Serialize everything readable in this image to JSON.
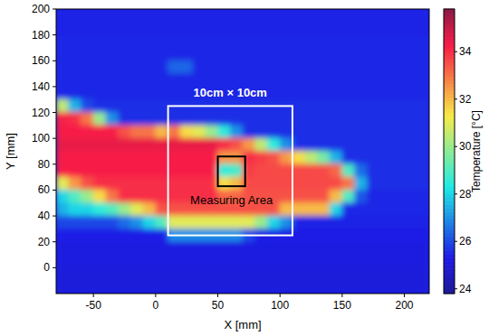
{
  "chart_data": {
    "type": "heatmap",
    "x_label": "X [mm]",
    "y_label": "Y [mm]",
    "colorbar_label": "Temperature [°C]",
    "xlim": [
      -80,
      220
    ],
    "ylim": [
      -20,
      200
    ],
    "xticks": [
      -50,
      0,
      50,
      100,
      150,
      200
    ],
    "yticks": [
      0,
      20,
      40,
      60,
      80,
      100,
      120,
      140,
      160,
      180,
      200
    ],
    "color_range": [
      23.8,
      35.8
    ],
    "color_ticks": [
      24,
      26,
      28,
      30,
      32,
      34
    ],
    "x": [
      -75,
      -65,
      -55,
      -45,
      -35,
      -25,
      -15,
      -5,
      5,
      15,
      25,
      35,
      45,
      55,
      65,
      75,
      85,
      95,
      105,
      115,
      125,
      135,
      145,
      155,
      165,
      175,
      185,
      195,
      205,
      215
    ],
    "y": [
      195,
      185,
      175,
      165,
      155,
      145,
      135,
      125,
      115,
      105,
      95,
      85,
      75,
      65,
      55,
      45,
      35,
      25,
      15,
      5,
      -5,
      -15
    ],
    "cells": [
      [
        25.4,
        25.4,
        25.4,
        25.4,
        25.4,
        25.4,
        25.4,
        25.4,
        25.4,
        25.4,
        25.4,
        25.4,
        25.4,
        25.4,
        25.4,
        25.4,
        25.4,
        25.4,
        25.4,
        25.4,
        25.4,
        25.4,
        25.4,
        25.4,
        25.4,
        25.4,
        25.4,
        25.4,
        25.4,
        25.4
      ],
      [
        25.4,
        25.4,
        25.4,
        25.4,
        25.4,
        25.4,
        25.4,
        25.4,
        25.4,
        25.4,
        25.4,
        25.4,
        25.4,
        25.4,
        25.4,
        25.4,
        25.4,
        25.4,
        25.4,
        25.4,
        25.4,
        25.4,
        25.4,
        25.4,
        25.4,
        25.4,
        25.4,
        25.4,
        25.4,
        25.4
      ],
      [
        25.5,
        25.5,
        25.5,
        25.5,
        25.5,
        25.5,
        25.5,
        25.5,
        25.5,
        25.5,
        25.5,
        25.5,
        25.5,
        25.5,
        25.5,
        25.5,
        25.5,
        25.5,
        25.5,
        25.5,
        25.5,
        25.5,
        25.5,
        25.5,
        25.5,
        25.5,
        25.5,
        25.5,
        25.5,
        25.5
      ],
      [
        25.5,
        25.5,
        25.5,
        25.5,
        25.5,
        25.5,
        25.5,
        25.5,
        25.5,
        25.5,
        25.5,
        25.5,
        25.5,
        25.5,
        25.5,
        25.5,
        25.5,
        25.5,
        25.5,
        25.5,
        25.5,
        25.5,
        25.5,
        25.5,
        25.5,
        25.5,
        25.5,
        25.5,
        25.5,
        25.5
      ],
      [
        25.5,
        25.5,
        25.5,
        25.5,
        25.5,
        25.5,
        25.5,
        25.5,
        25.5,
        26.4,
        26.4,
        25.5,
        25.5,
        25.5,
        25.5,
        25.5,
        25.5,
        25.5,
        25.5,
        25.5,
        25.5,
        25.5,
        25.5,
        25.5,
        25.5,
        25.5,
        25.5,
        25.5,
        25.5,
        25.5
      ],
      [
        25.5,
        25.5,
        25.5,
        25.5,
        25.5,
        25.5,
        25.5,
        25.5,
        25.5,
        25.5,
        25.5,
        25.5,
        25.5,
        25.5,
        25.5,
        25.5,
        25.5,
        25.5,
        25.5,
        25.5,
        25.5,
        25.5,
        25.5,
        25.5,
        25.5,
        25.5,
        25.5,
        25.5,
        25.5,
        25.5
      ],
      [
        25.5,
        25.5,
        25.5,
        25.5,
        25.5,
        25.5,
        25.5,
        25.5,
        25.5,
        25.5,
        25.5,
        25.5,
        25.5,
        25.5,
        25.5,
        25.5,
        25.5,
        25.5,
        25.5,
        25.5,
        25.5,
        25.5,
        25.5,
        25.5,
        25.5,
        25.5,
        25.5,
        25.5,
        25.5,
        25.5
      ],
      [
        30.5,
        27.5,
        26,
        25.6,
        25.6,
        25.6,
        25.6,
        25.6,
        25.6,
        25.6,
        25.6,
        25.6,
        25.6,
        25.6,
        25.6,
        25.6,
        25.6,
        25.6,
        25.6,
        25.6,
        25.6,
        25.6,
        25.6,
        25.6,
        25.6,
        25.6,
        25.6,
        25.6,
        25.6,
        25.6
      ],
      [
        34.2,
        34,
        33,
        30,
        27,
        25.6,
        25.6,
        25.6,
        25.6,
        25.6,
        25.6,
        25.6,
        25.6,
        25.6,
        25.6,
        25.6,
        25.6,
        25.6,
        25.6,
        25.6,
        25.6,
        25.6,
        25.6,
        25.6,
        25.6,
        25.6,
        25.6,
        25.6,
        25.6,
        25.6
      ],
      [
        34.3,
        34.3,
        34.3,
        34.3,
        34.3,
        33.5,
        33,
        33,
        32,
        33,
        31.5,
        31,
        30,
        28.5,
        27,
        25.6,
        25.6,
        25.6,
        25.6,
        25.6,
        25.6,
        25.6,
        25.6,
        25.6,
        25.6,
        25.6,
        25.6,
        25.6,
        25.6,
        25.6
      ],
      [
        34.5,
        34.5,
        34.5,
        34.5,
        34.5,
        34.5,
        34.5,
        34.5,
        34.5,
        34.5,
        34.5,
        34.5,
        34.5,
        34,
        33.5,
        32.5,
        30.5,
        28.5,
        27,
        25.6,
        25.6,
        25.6,
        25.6,
        25.6,
        25.6,
        25.6,
        25.6,
        25.6,
        25.6,
        25.6
      ],
      [
        34.3,
        34.3,
        34.3,
        34.3,
        34.3,
        34.3,
        34.3,
        34.3,
        34.3,
        34.3,
        34.3,
        34.3,
        34.3,
        32.5,
        32.5,
        34,
        33.8,
        33.5,
        32.5,
        31.5,
        30.5,
        29.5,
        27.5,
        25.6,
        25.6,
        25.6,
        25.6,
        25.6,
        25.6,
        25.6
      ],
      [
        34.3,
        34.3,
        34.3,
        34.3,
        34.3,
        34.3,
        34.3,
        34.3,
        34.3,
        34.3,
        34.3,
        34.3,
        34.3,
        28.5,
        28.8,
        33.8,
        33.6,
        33.6,
        33.6,
        33.6,
        33.6,
        33.6,
        33.2,
        29,
        26.5,
        25.6,
        25.6,
        25.6,
        25.6,
        25.6
      ],
      [
        31,
        32.5,
        33.5,
        34,
        34,
        34,
        34,
        34,
        34,
        34,
        34,
        34,
        34,
        31.5,
        32,
        33.6,
        33.6,
        33.6,
        33.6,
        33.6,
        33.6,
        33.6,
        33.6,
        33,
        27.5,
        25.6,
        25.6,
        25.6,
        25.6,
        25.6
      ],
      [
        28,
        29,
        30,
        31.5,
        33,
        34,
        34,
        34,
        34,
        34,
        34,
        34,
        34,
        33.2,
        33.2,
        33.5,
        33.5,
        33.5,
        33.5,
        33.5,
        33.5,
        33.5,
        32,
        29,
        26.2,
        25.5,
        25.5,
        25.5,
        25.5,
        25.5
      ],
      [
        27.5,
        28,
        28,
        28.5,
        29,
        30,
        31,
        32,
        33.5,
        33.5,
        33.5,
        33.5,
        33.5,
        33.5,
        33.5,
        33.5,
        33.5,
        33.5,
        32,
        32,
        32,
        32,
        28,
        25.5,
        25.5,
        25.5,
        25.5,
        25.5,
        25.5,
        25.5
      ],
      [
        26,
        26,
        26,
        26,
        26,
        26.5,
        27,
        28,
        29,
        31,
        31,
        31,
        31,
        31,
        31,
        31,
        30,
        28,
        27,
        25.4,
        25.4,
        25.4,
        25.4,
        25.4,
        25.4,
        25.4,
        25.4,
        25.4,
        25.4,
        25.4
      ],
      [
        25.3,
        25.3,
        25.3,
        25.3,
        25.3,
        25.3,
        25.3,
        25.3,
        25.3,
        27,
        27,
        27,
        27,
        27,
        27,
        26,
        25.3,
        25.3,
        25.3,
        25.3,
        25.3,
        25.3,
        25.3,
        25.3,
        25.3,
        25.3,
        25.3,
        25.3,
        25.3,
        25.3
      ],
      [
        25.2,
        25.2,
        25.2,
        25.2,
        25.2,
        25.2,
        25.2,
        25.2,
        25.2,
        25.2,
        25.2,
        25.2,
        25.2,
        25.2,
        25.2,
        25.2,
        25.2,
        25.2,
        25.2,
        25.2,
        25.2,
        25.2,
        25.2,
        25.2,
        25.2,
        25.2,
        25.2,
        25.2,
        25.2,
        25.2
      ],
      [
        25.2,
        25.2,
        25.2,
        25.2,
        25.2,
        25.2,
        25.2,
        25.2,
        25.2,
        25.2,
        25.2,
        25.2,
        25.2,
        25.2,
        25.2,
        25.2,
        25.2,
        25.2,
        25.2,
        25.2,
        25.2,
        25.2,
        25.2,
        25.2,
        25.2,
        25.2,
        25.2,
        25.2,
        25.2,
        25.2
      ],
      [
        25.1,
        25.1,
        25.1,
        25.1,
        25.1,
        25.1,
        25.1,
        25.1,
        25.1,
        25.1,
        25.1,
        25.1,
        25.1,
        25.1,
        25.1,
        25.1,
        25.1,
        25.1,
        25.1,
        25.1,
        25.1,
        25.1,
        25.1,
        25.1,
        25.1,
        25.1,
        25.1,
        25.1,
        25.1,
        25.1
      ],
      [
        25.1,
        25.1,
        25.1,
        25.1,
        25.1,
        25.1,
        25.1,
        25.1,
        25.1,
        25.1,
        25.1,
        25.1,
        25.1,
        25.1,
        25.1,
        25.1,
        25.1,
        25.1,
        25.1,
        25.1,
        25.1,
        25.1,
        25.1,
        25.1,
        25.1,
        25.1,
        25.1,
        25.1,
        25.1,
        25.1
      ]
    ],
    "regions": [
      {
        "label": "10cm × 10cm",
        "x": [
          10,
          110
        ],
        "y": [
          25,
          125
        ],
        "color": "#ffffff"
      },
      {
        "label": "Measuring Area",
        "x": [
          50,
          72
        ],
        "y": [
          63,
          86
        ],
        "color": "#000000"
      }
    ]
  }
}
